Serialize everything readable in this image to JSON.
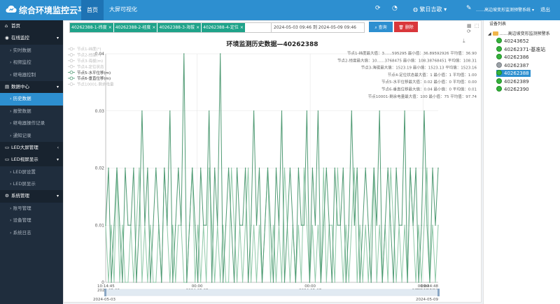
{
  "app": {
    "title": "综合环境监控云平台"
  },
  "topnav": {
    "home": "首页",
    "bigscreen": "大屏可视化",
    "lang": "繁日吉歌",
    "user": "……高边坡变形监测预警系统",
    "logout": "退出"
  },
  "sidebar": [
    {
      "label": "首页",
      "kind": "group",
      "icon": "⌂"
    },
    {
      "label": "在线监控",
      "kind": "group",
      "icon": "◉",
      "caret": "▾"
    },
    {
      "label": "实时数据",
      "kind": "sub"
    },
    {
      "label": "视频监控",
      "kind": "sub"
    },
    {
      "label": "继电器控制",
      "kind": "sub"
    },
    {
      "label": "数据中心",
      "kind": "group",
      "icon": "▤",
      "caret": "▾"
    },
    {
      "label": "历史数据",
      "kind": "sub",
      "active": true
    },
    {
      "label": "报警数据",
      "kind": "sub"
    },
    {
      "label": "继电器操作记录",
      "kind": "sub"
    },
    {
      "label": "通知记录",
      "kind": "sub"
    },
    {
      "label": "LED大屏管理",
      "kind": "group",
      "icon": "▭",
      "caret": "‹"
    },
    {
      "label": "LED视屏显示",
      "kind": "group",
      "icon": "▭",
      "caret": "▾"
    },
    {
      "label": "LED屏设置",
      "kind": "sub"
    },
    {
      "label": "LED屏显示",
      "kind": "sub"
    },
    {
      "label": "系统管理",
      "kind": "group",
      "icon": "⚙",
      "caret": "▾"
    },
    {
      "label": "账号管理",
      "kind": "sub"
    },
    {
      "label": "设备管理",
      "kind": "sub"
    },
    {
      "label": "系统日志",
      "kind": "sub"
    }
  ],
  "filter": {
    "tags": [
      "40262388-1-纬度",
      "40262388-2-经度",
      "40262388-3-海拔",
      "40262388-4-定位"
    ],
    "tag_close": "×",
    "date_range": "2024-05-03 09:46 到 2024-05-09 09:46",
    "query_button": "查询",
    "delete_button": "删除"
  },
  "icons": {
    "logo": "cloud-icon",
    "view": "▦ ⬚ ⟳",
    "download": "⤓"
  },
  "chart_data": {
    "type": "line",
    "title": "环境监测历史数据—40262388",
    "y_ticks": [
      "0.04",
      "0.03",
      "0.02",
      "0.01",
      "0"
    ],
    "ylim": [
      0,
      0.04
    ],
    "grid": true,
    "legend_position": "top-left",
    "legend": [
      "节点1-纬度(°)",
      "节点2-经度(°)",
      "节点3-海拔(m)",
      "节点4-定位状态",
      "节点5-水平位移(m)",
      "节点6-垂直位移(m)",
      "节点10001-剩余电量"
    ],
    "legend_active": [
      false,
      false,
      false,
      false,
      true,
      true,
      false
    ],
    "stats": [
      "节点1-纬度最大值：3……595295  最小值：36.89592926  平均值：36.90",
      "节点2-经度最大值：10……3768475  最小值：108.38768451  平均值：108.31",
      "节点3-海拔最大值：1523.19  最小值：1523.13  平均值：1523.16",
      "节点4-定位状态最大值：1  最小值：1  平均值：1.00",
      "节点5-水平位移最大值：0.02  最小值：0  平均值：0.00",
      "节点6-垂直位移最大值：0.04  最小值：0  平均值：0.01",
      "节点10001-剩余电量最大值：100  最小值：75  平均值：97.74"
    ],
    "x_ticks": [
      {
        "time": "10:14:45",
        "date": "2024-05-03",
        "pos": 0.0
      },
      {
        "time": "00:00",
        "date": "2024-05-05",
        "pos": 0.275
      },
      {
        "time": "00:00",
        "date": "2024-05-07",
        "pos": 0.615
      },
      {
        "time": "00:00",
        "date": "2024-05-09",
        "pos": 0.955
      },
      {
        "time": "09:44:48",
        "date": "2024-05-09",
        "pos": 1.0
      }
    ],
    "slider_start": "2024-05-03",
    "slider_end": "2024-05-09",
    "series": [
      {
        "name": "节点5-水平位移(m)",
        "color": "#8fc9a8",
        "values": [
          0.01,
          0,
          0.01,
          0,
          0.02,
          0,
          0.01,
          0,
          0,
          0.01,
          0,
          0.01,
          0.02,
          0,
          0.01,
          0,
          0.01,
          0,
          0,
          0.01,
          0,
          0.02,
          0.01,
          0,
          0.01,
          0,
          0.01,
          0.01,
          0,
          0,
          0.01,
          0.02,
          0,
          0.01,
          0,
          0.01,
          0,
          0.02,
          0.01,
          0,
          0.01,
          0,
          0.01,
          0,
          0,
          0.02,
          0.01,
          0,
          0.01,
          0,
          0.01,
          0.02,
          0,
          0.01,
          0,
          0.01,
          0,
          0.01,
          0.02,
          0,
          0.01,
          0,
          0.01,
          0,
          0.02,
          0.01,
          0,
          0.01,
          0,
          0.01,
          0,
          0.02,
          0.01,
          0,
          0.01,
          0,
          0.01,
          0,
          0.02,
          0,
          0.01,
          0.01,
          0,
          0.02,
          0.01,
          0,
          0.01,
          0,
          0.01,
          0.02,
          0,
          0.01,
          0,
          0.01,
          0,
          0.01,
          0.02,
          0,
          0.01,
          0,
          0.01,
          0,
          0.02,
          0.01,
          0,
          0.01,
          0,
          0.01,
          0,
          0.02,
          0.01,
          0,
          0.01,
          0,
          0.01,
          0.02,
          0,
          0.01,
          0,
          0.01
        ]
      },
      {
        "name": "节点6-垂直位移(m)",
        "color": "#4f9a73",
        "values": [
          0.01,
          0.02,
          0,
          0.01,
          0.02,
          0.01,
          0,
          0.02,
          0.01,
          0.01,
          0.02,
          0,
          0.01,
          0.03,
          0.01,
          0.02,
          0,
          0.01,
          0.02,
          0.01,
          0,
          0.02,
          0.01,
          0.03,
          0,
          0.01,
          0.02,
          0.01,
          0.04,
          0,
          0.01,
          0.02,
          0.01,
          0,
          0.02,
          0.01,
          0.01,
          0.03,
          0,
          0.02,
          0.01,
          0.04,
          0,
          0.01,
          0.02,
          0.01,
          0,
          0.02,
          0.01,
          0.01,
          0.02,
          0,
          0.01,
          0.03,
          0.01,
          0.02,
          0,
          0.01,
          0.02,
          0.01,
          0,
          0.02,
          0.01,
          0.03,
          0,
          0.01,
          0.02,
          0.01,
          0,
          0.02,
          0.01,
          0.01,
          0.03,
          0,
          0.02,
          0.01,
          0.03,
          0,
          0.01,
          0.02,
          0.01,
          0,
          0.02,
          0.01,
          0.01,
          0.02,
          0,
          0.01,
          0.03,
          0.01,
          0.02,
          0,
          0.01,
          0.02,
          0.01,
          0,
          0.02,
          0.01,
          0.03,
          0,
          0.01,
          0.02,
          0.01,
          0,
          0.02,
          0.01,
          0.01,
          0.03,
          0,
          0.02,
          0.01,
          0.02,
          0,
          0.01,
          0.03,
          0.01,
          0,
          0.02,
          0.01,
          0.02
        ]
      }
    ]
  },
  "devices": {
    "title": "设备列表",
    "root": "……高边坡变形监测预警系",
    "items": [
      {
        "id": "40243652",
        "status": "online"
      },
      {
        "id": "40262371-基准站",
        "status": "online"
      },
      {
        "id": "40262386",
        "status": "online"
      },
      {
        "id": "40262387",
        "status": "offline"
      },
      {
        "id": "40262388",
        "status": "online",
        "selected": true
      },
      {
        "id": "40262389",
        "status": "online"
      },
      {
        "id": "40262390",
        "status": "online"
      }
    ]
  }
}
